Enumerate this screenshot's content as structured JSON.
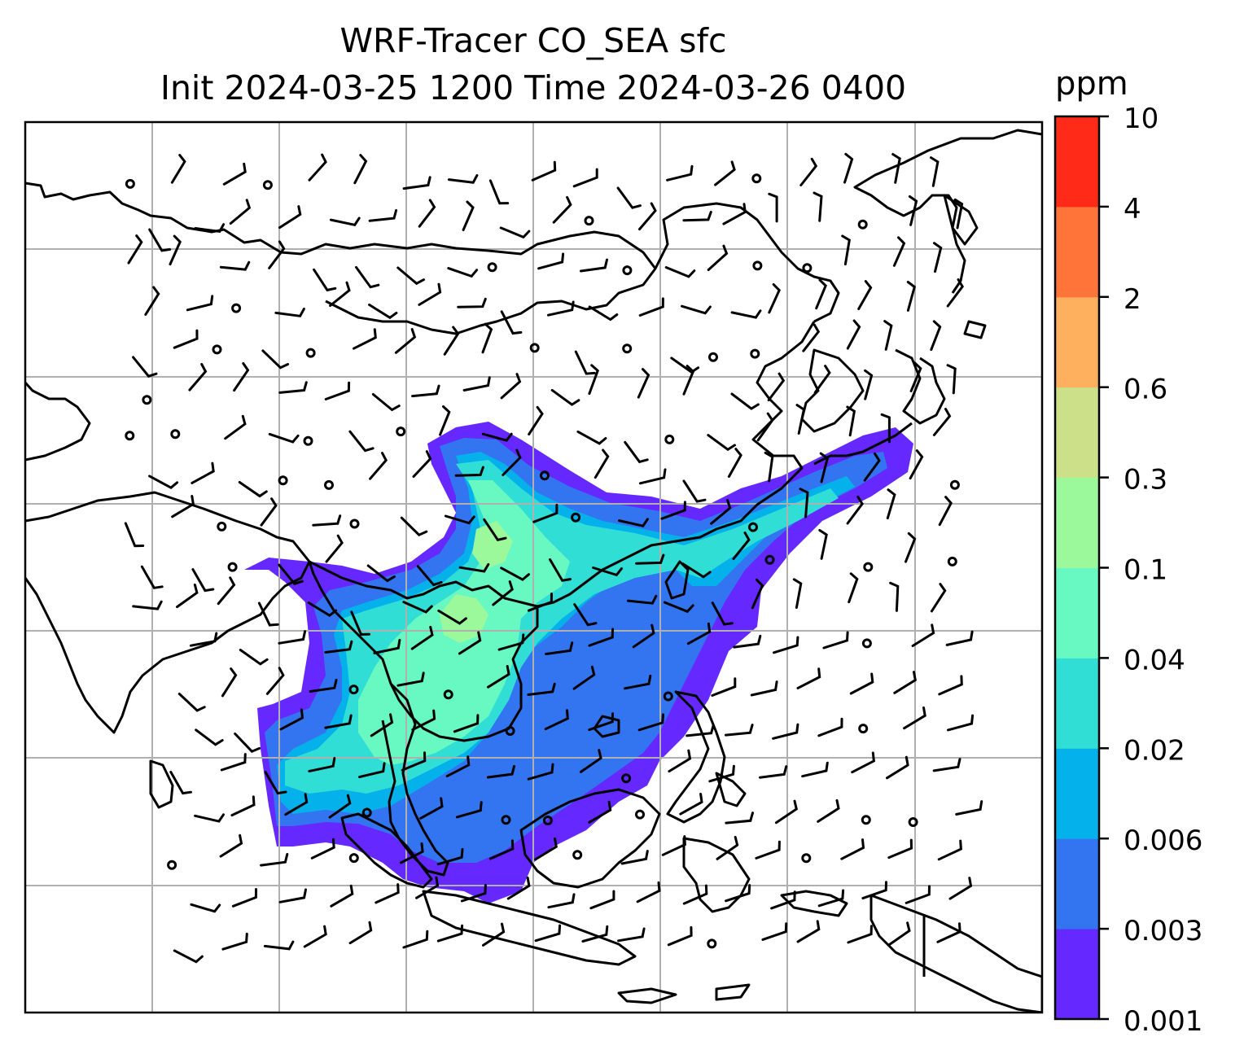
{
  "chart_data": {
    "type": "heatmap",
    "title": "WRF-Tracer CO_SEA sfc",
    "subtitle": "Init 2024-03-25 1200 Time 2024-03-26 0400",
    "colorbar": {
      "unit": "ppm",
      "ticks": [
        "0.001",
        "0.003",
        "0.006",
        "0.02",
        "0.04",
        "0.1",
        "0.3",
        "0.6",
        "2",
        "4",
        "10"
      ],
      "colors": [
        "#6528ff",
        "#3375f0",
        "#05b1ea",
        "#31ded5",
        "#68f8c2",
        "#9bf99b",
        "#cce08a",
        "#ffb05e",
        "#ff7439",
        "#ff2a17"
      ]
    },
    "map": {
      "region": "South and East Asia",
      "grid": true,
      "overlays": [
        "coastlines",
        "wind barbs"
      ]
    },
    "plume": {
      "max_level": "0.1 - 0.3",
      "core_level": "0.04 - 0.1"
    }
  }
}
